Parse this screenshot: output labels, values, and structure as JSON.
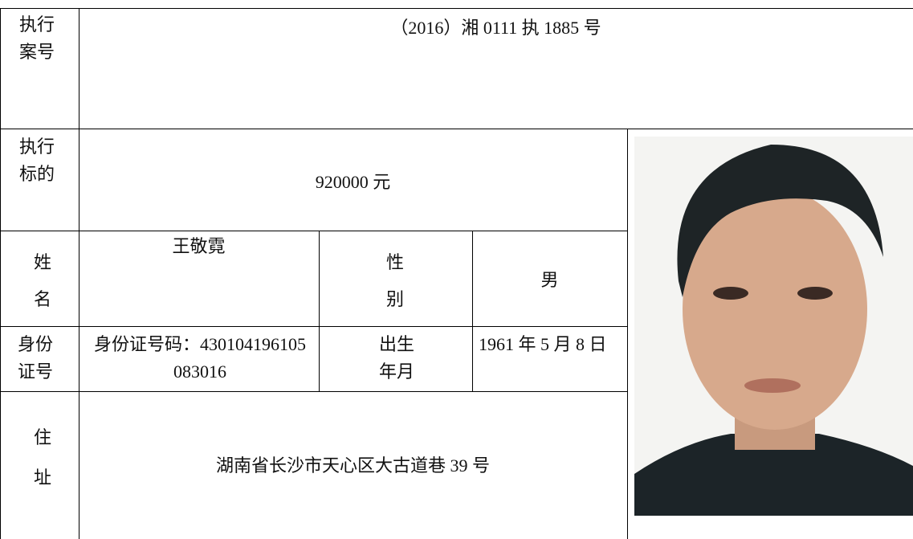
{
  "table": {
    "rows": [
      {
        "label": "执行案号",
        "value": "（2016）湘 0111 执 1885 号"
      },
      {
        "label": "执行标的",
        "value": "920000 元"
      },
      {
        "label": "姓名",
        "value": "王敬霓",
        "label2": "性别",
        "value2": "男"
      },
      {
        "label": "身份证号",
        "value": "身份证号码：430104196105083016",
        "label2": "出生年月",
        "value2": "1961 年 5 月 8 日"
      },
      {
        "label": "住址",
        "value": "湖南省长沙市天心区大古道巷 39 号"
      }
    ]
  }
}
